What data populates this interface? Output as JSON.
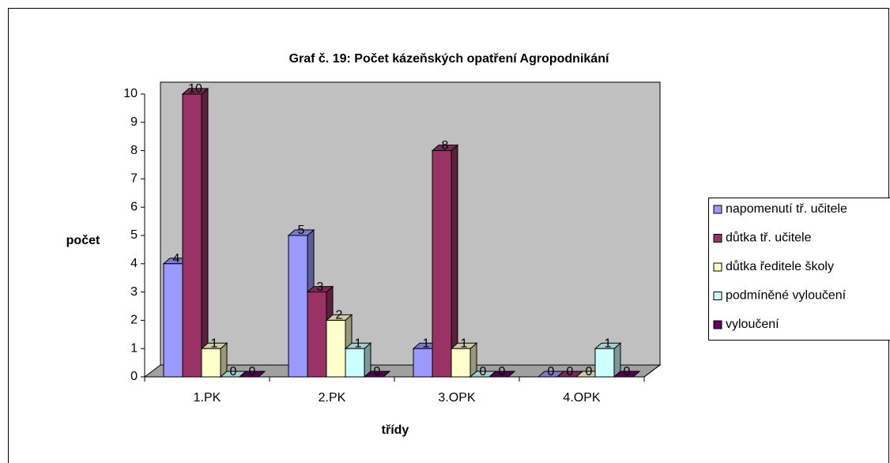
{
  "chart_data": {
    "type": "bar",
    "title": "Graf č. 19: Počet kázeňských opatření Agropodnikání",
    "x_label": "třídy",
    "y_label": "počet",
    "categories": [
      "1.PK",
      "2.PK",
      "3.OPK",
      "4.OPK"
    ],
    "series": [
      {
        "name": "napomenutí tř. učitele",
        "color": "#9999ff",
        "values": [
          4,
          5,
          1,
          0
        ]
      },
      {
        "name": "důtka tř. učitele",
        "color": "#993366",
        "values": [
          10,
          3,
          8,
          0
        ]
      },
      {
        "name": "důtka ředitele školy",
        "color": "#ffffcc",
        "values": [
          1,
          2,
          1,
          0
        ]
      },
      {
        "name": "podmíněné vyloučení",
        "color": "#ccffff",
        "values": [
          0,
          1,
          0,
          1
        ]
      },
      {
        "name": "vyloučení",
        "color": "#660066",
        "values": [
          0,
          0,
          0,
          0
        ]
      }
    ],
    "ylim": [
      0,
      10
    ],
    "yticks": [
      0,
      1,
      2,
      3,
      4,
      5,
      6,
      7,
      8,
      9,
      10
    ],
    "legend": "right"
  }
}
